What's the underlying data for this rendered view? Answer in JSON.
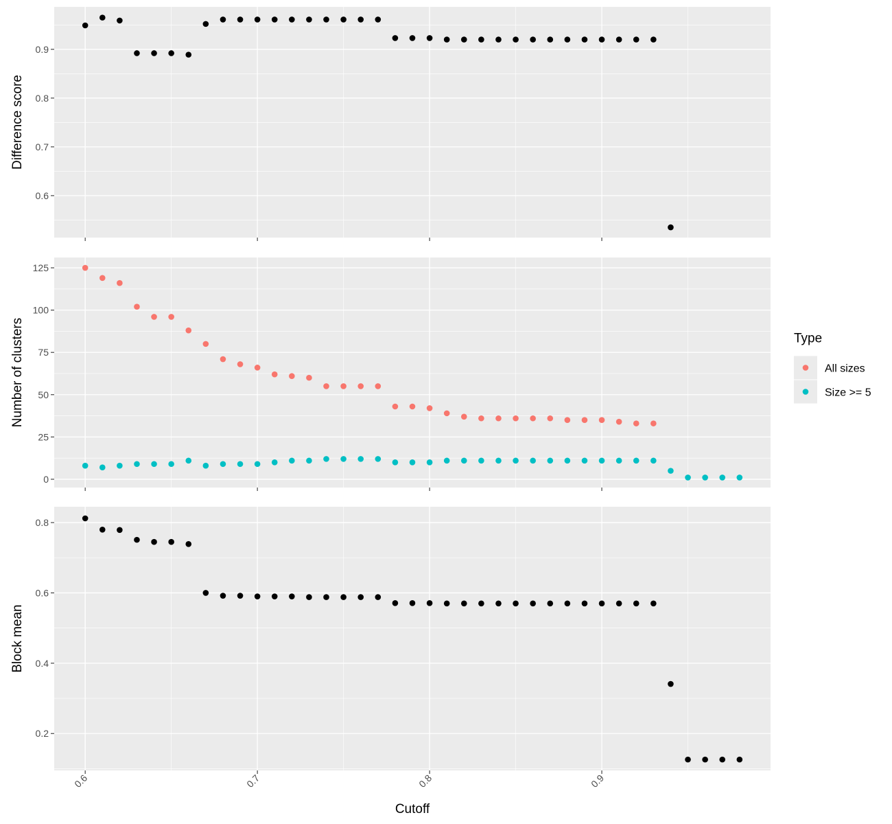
{
  "chart_data": [
    {
      "type": "scatter",
      "y_label": "Difference score",
      "color": "#000000",
      "grid": true,
      "x": [
        0.6,
        0.61,
        0.62,
        0.63,
        0.64,
        0.65,
        0.66,
        0.67,
        0.68,
        0.69,
        0.7,
        0.71,
        0.72,
        0.73,
        0.74,
        0.75,
        0.76,
        0.77,
        0.78,
        0.79,
        0.8,
        0.81,
        0.82,
        0.83,
        0.84,
        0.85,
        0.86,
        0.87,
        0.88,
        0.89,
        0.9,
        0.91,
        0.92,
        0.93,
        0.94
      ],
      "values": [
        0.949,
        0.965,
        0.959,
        0.892,
        0.892,
        0.892,
        0.889,
        0.952,
        0.961,
        0.961,
        0.961,
        0.961,
        0.961,
        0.961,
        0.961,
        0.961,
        0.961,
        0.961,
        0.923,
        0.923,
        0.923,
        0.92,
        0.92,
        0.92,
        0.92,
        0.92,
        0.92,
        0.92,
        0.92,
        0.92,
        0.92,
        0.92,
        0.92,
        0.92,
        0.535
      ],
      "xlim": [
        0.582,
        0.998
      ],
      "ylim": [
        0.514,
        0.987
      ],
      "xticks": [
        0.6,
        0.7,
        0.8,
        0.9
      ],
      "yticks": [
        0.6,
        0.7,
        0.8,
        0.9
      ]
    },
    {
      "type": "scatter",
      "y_label": "Number of clusters",
      "grid": true,
      "legend_title": "Type",
      "legend_position": "right",
      "x": [
        0.6,
        0.61,
        0.62,
        0.63,
        0.64,
        0.65,
        0.66,
        0.67,
        0.68,
        0.69,
        0.7,
        0.71,
        0.72,
        0.73,
        0.74,
        0.75,
        0.76,
        0.77,
        0.78,
        0.79,
        0.8,
        0.81,
        0.82,
        0.83,
        0.84,
        0.85,
        0.86,
        0.87,
        0.88,
        0.89,
        0.9,
        0.91,
        0.92,
        0.93,
        0.94,
        0.95,
        0.96,
        0.97,
        0.98
      ],
      "series": [
        {
          "name": "All sizes",
          "color": "#F8766D",
          "values": [
            125,
            119,
            116,
            102,
            96,
            96,
            88,
            80,
            71,
            68,
            66,
            62,
            61,
            60,
            55,
            55,
            55,
            55,
            43,
            43,
            42,
            39,
            37,
            36,
            36,
            36,
            36,
            36,
            35,
            35,
            35,
            34,
            33,
            33,
            null,
            null,
            null,
            null,
            null
          ]
        },
        {
          "name": "Size >= 5",
          "color": "#00BFC4",
          "values": [
            8,
            7,
            8,
            9,
            9,
            9,
            11,
            8,
            9,
            9,
            9,
            10,
            11,
            11,
            12,
            12,
            12,
            12,
            10,
            10,
            10,
            11,
            11,
            11,
            11,
            11,
            11,
            11,
            11,
            11,
            11,
            11,
            11,
            11,
            5,
            1,
            1,
            1,
            1
          ]
        }
      ],
      "xlim": [
        0.582,
        0.998
      ],
      "ylim": [
        -4.9,
        131.1
      ],
      "xticks": [
        0.6,
        0.7,
        0.8,
        0.9
      ],
      "yticks": [
        0,
        25,
        50,
        75,
        100,
        125
      ]
    },
    {
      "type": "scatter",
      "y_label": "Block mean",
      "x_label": "Cutoff",
      "color": "#000000",
      "grid": true,
      "x": [
        0.6,
        0.61,
        0.62,
        0.63,
        0.64,
        0.65,
        0.66,
        0.67,
        0.68,
        0.69,
        0.7,
        0.71,
        0.72,
        0.73,
        0.74,
        0.75,
        0.76,
        0.77,
        0.78,
        0.79,
        0.8,
        0.81,
        0.82,
        0.83,
        0.84,
        0.85,
        0.86,
        0.87,
        0.88,
        0.89,
        0.9,
        0.91,
        0.92,
        0.93,
        0.94,
        0.95,
        0.96,
        0.97,
        0.98
      ],
      "values": [
        0.812,
        0.78,
        0.779,
        0.751,
        0.745,
        0.745,
        0.739,
        0.6,
        0.592,
        0.592,
        0.59,
        0.59,
        0.59,
        0.588,
        0.588,
        0.588,
        0.588,
        0.588,
        0.571,
        0.571,
        0.571,
        0.57,
        0.57,
        0.57,
        0.57,
        0.57,
        0.57,
        0.57,
        0.57,
        0.57,
        0.57,
        0.57,
        0.57,
        0.57,
        0.341,
        0.126,
        0.126,
        0.126,
        0.126
      ],
      "xlim": [
        0.582,
        0.998
      ],
      "ylim": [
        0.095,
        0.845
      ],
      "xticks": [
        0.6,
        0.7,
        0.8,
        0.9
      ],
      "yticks": [
        0.2,
        0.4,
        0.6,
        0.8
      ]
    }
  ]
}
